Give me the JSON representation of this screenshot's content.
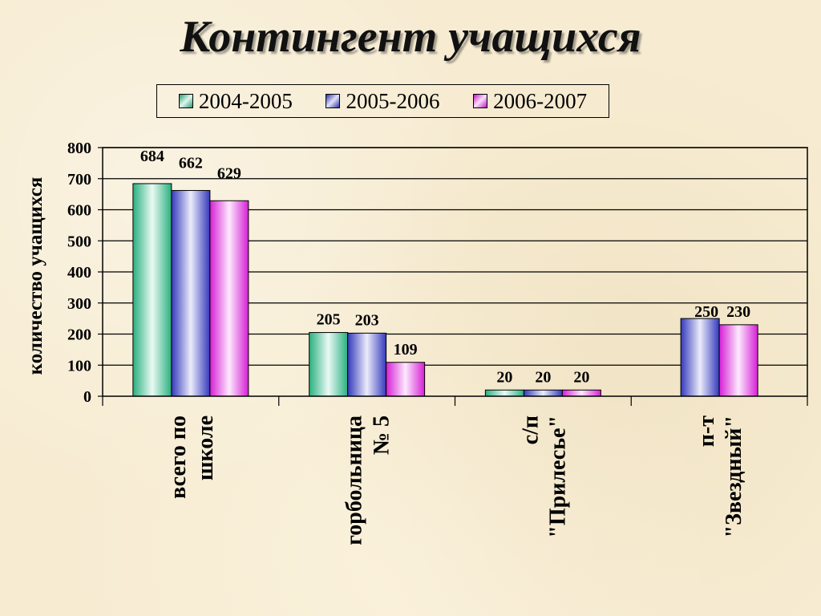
{
  "chart_data": {
    "type": "bar",
    "title": "Контингент учащихся",
    "ylabel": "количество учащихся",
    "xlabel": "",
    "ylim": [
      0,
      800
    ],
    "yticks": [
      0,
      100,
      200,
      300,
      400,
      500,
      600,
      700,
      800
    ],
    "grid": true,
    "legend_position": "top",
    "categories": [
      [
        "всего по",
        "школе"
      ],
      [
        "горбольница",
        "№ 5"
      ],
      [
        "с/п",
        "\"Прилесье\""
      ],
      [
        "п-т",
        "\"Звездный\""
      ]
    ],
    "series": [
      {
        "name": "2004-2005",
        "values": [
          684,
          205,
          20,
          null
        ],
        "color": "#2ec48c"
      },
      {
        "name": "2005-2006",
        "values": [
          662,
          203,
          20,
          250
        ],
        "color": "#3a3fd0"
      },
      {
        "name": "2006-2007",
        "values": [
          629,
          109,
          20,
          230
        ],
        "color": "#ee22ee"
      }
    ]
  }
}
